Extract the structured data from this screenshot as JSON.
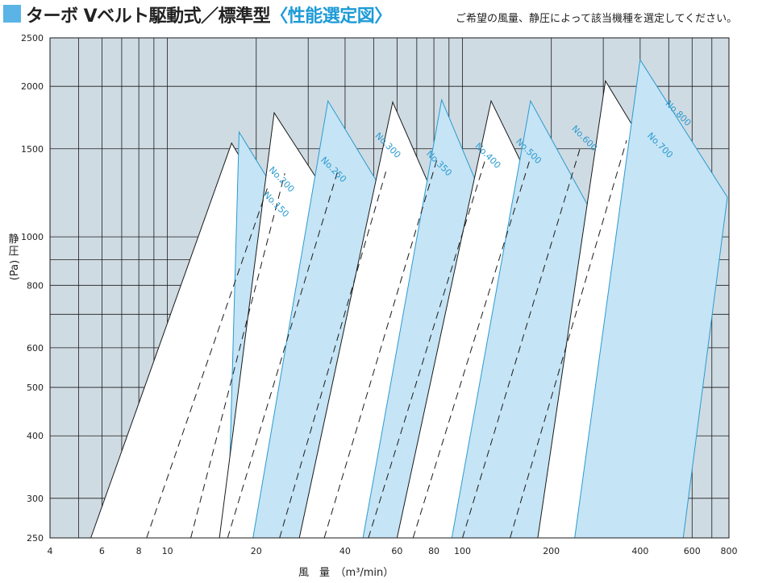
{
  "header": {
    "title_main": "ターボ Vベルト駆動式／標準型",
    "title_highlight": "〈性能選定図〉",
    "subtitle": "ご希望の風量、静圧によって該当機種を選定してください。"
  },
  "colors": {
    "background": "#cfdbe3",
    "grid": "#1a1a1a",
    "white_band": "#ffffff",
    "blue_band": "#c5e4f5",
    "blue_outline": "#2a9bd0",
    "blue_text": "#2a9bd0",
    "title_accent": "#1e9bd7"
  },
  "chart_data": {
    "type": "area",
    "xscale": "log",
    "yscale": "log",
    "xlim": [
      4,
      800
    ],
    "ylim": [
      250,
      2500
    ],
    "xlabel": "風　量　（m³/min）",
    "ylabel_main": "静圧",
    "ylabel_unit": "(Pa)",
    "x_ticks": [
      4,
      6,
      8,
      10,
      20,
      40,
      60,
      80,
      100,
      200,
      400,
      600,
      800
    ],
    "y_ticks": [
      250,
      300,
      400,
      500,
      600,
      800,
      1000,
      1500,
      2000,
      2500
    ],
    "x_grid": [
      4,
      5,
      6,
      7,
      8,
      9,
      10,
      20,
      30,
      40,
      50,
      60,
      70,
      80,
      90,
      100,
      200,
      300,
      400,
      500,
      600,
      700,
      800
    ],
    "y_grid": [
      250,
      300,
      400,
      500,
      600,
      700,
      800,
      900,
      1000,
      1500,
      2000,
      2500
    ],
    "series": [
      {
        "name": "No.150",
        "fill": "white",
        "vertices": [
          [
            5.5,
            250
          ],
          [
            16.5,
            1540
          ],
          [
            32,
            800
          ],
          [
            27,
            250
          ]
        ]
      },
      {
        "name": "No.200",
        "fill": "blue",
        "vertices": [
          [
            16,
            250
          ],
          [
            17.5,
            1620
          ],
          [
            35,
            830
          ],
          [
            31,
            250
          ]
        ]
      },
      {
        "name": "No.250",
        "fill": "white",
        "vertices": [
          [
            15,
            250
          ],
          [
            23,
            1770
          ],
          [
            45,
            960
          ],
          [
            33,
            250
          ]
        ]
      },
      {
        "name": "No.300",
        "fill": "blue",
        "vertices": [
          [
            19.5,
            250
          ],
          [
            35,
            1870
          ],
          [
            68,
            980
          ],
          [
            49,
            250
          ]
        ]
      },
      {
        "name": "No.350",
        "fill": "white",
        "vertices": [
          [
            28,
            250
          ],
          [
            58,
            1860
          ],
          [
            92,
            1000
          ],
          [
            67,
            250
          ]
        ]
      },
      {
        "name": "No.400",
        "fill": "blue",
        "vertices": [
          [
            46,
            250
          ],
          [
            85,
            1880
          ],
          [
            135,
            980
          ],
          [
            100,
            250
          ]
        ]
      },
      {
        "name": "No.500",
        "fill": "white",
        "vertices": [
          [
            60,
            250
          ],
          [
            125,
            1870
          ],
          [
            210,
            1000
          ],
          [
            150,
            250
          ]
        ]
      },
      {
        "name": "No.600",
        "fill": "blue",
        "vertices": [
          [
            92,
            250
          ],
          [
            170,
            1870
          ],
          [
            310,
            980
          ],
          [
            225,
            250
          ]
        ]
      },
      {
        "name": "No.700",
        "fill": "white",
        "vertices": [
          [
            180,
            250
          ],
          [
            305,
            2050
          ],
          [
            590,
            1080
          ],
          [
            430,
            250
          ]
        ]
      },
      {
        "name": "No.800",
        "fill": "blue",
        "vertices": [
          [
            240,
            250
          ],
          [
            400,
            2260
          ],
          [
            790,
            1200
          ],
          [
            560,
            250
          ]
        ]
      }
    ],
    "dashed_lines": [
      [
        [
          8.5,
          250
        ],
        [
          22,
          1270
        ]
      ],
      [
        [
          12,
          250
        ],
        [
          25,
          1340
        ]
      ],
      [
        [
          16,
          250
        ],
        [
          38,
          1370
        ]
      ],
      [
        [
          24,
          250
        ],
        [
          55,
          1350
        ]
      ],
      [
        [
          34,
          250
        ],
        [
          82,
          1430
        ]
      ],
      [
        [
          48,
          250
        ],
        [
          120,
          1440
        ]
      ],
      [
        [
          68,
          250
        ],
        [
          170,
          1440
        ]
      ],
      [
        [
          100,
          250
        ],
        [
          250,
          1500
        ]
      ],
      [
        [
          145,
          250
        ],
        [
          360,
          1560
        ]
      ]
    ],
    "labels": [
      {
        "text": "No.150",
        "at": [
          23,
          1150
        ],
        "rotate": 45
      },
      {
        "text": "No.200",
        "at": [
          24,
          1290
        ],
        "rotate": 45
      },
      {
        "text": "No.250",
        "at": [
          36,
          1350
        ],
        "rotate": 45
      },
      {
        "text": "No.300",
        "at": [
          55,
          1510
        ],
        "rotate": 45
      },
      {
        "text": "No.350",
        "at": [
          82,
          1390
        ],
        "rotate": 45
      },
      {
        "text": "No.400",
        "at": [
          120,
          1440
        ],
        "rotate": 45
      },
      {
        "text": "No.500",
        "at": [
          165,
          1470
        ],
        "rotate": 45
      },
      {
        "text": "No.600",
        "at": [
          255,
          1560
        ],
        "rotate": 45
      },
      {
        "text": "No.700",
        "at": [
          460,
          1510
        ],
        "rotate": 45
      },
      {
        "text": "No.800",
        "at": [
          530,
          1750
        ],
        "rotate": 45
      }
    ]
  }
}
